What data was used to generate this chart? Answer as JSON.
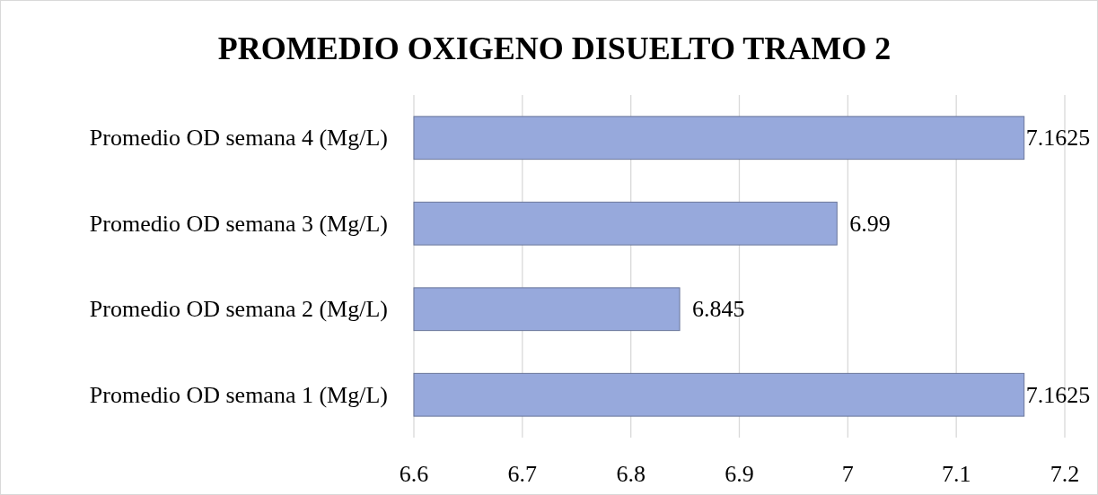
{
  "chart_data": {
    "type": "bar",
    "orientation": "horizontal",
    "title": "PROMEDIO OXIGENO DISUELTO TRAMO 2",
    "categories": [
      "Promedio OD semana 4 (Mg/L)",
      "Promedio OD semana 3 (Mg/L)",
      "Promedio OD semana 2 (Mg/L)",
      "Promedio OD semana 1 (Mg/L)"
    ],
    "values": [
      7.1625,
      6.99,
      6.845,
      7.1625
    ],
    "color": "#97a9dc",
    "xlim": [
      6.6,
      7.2
    ],
    "xticks": [
      6.6,
      6.7,
      6.8,
      6.9,
      7,
      7.1,
      7.2
    ],
    "grid": "x",
    "data_labels": true
  }
}
